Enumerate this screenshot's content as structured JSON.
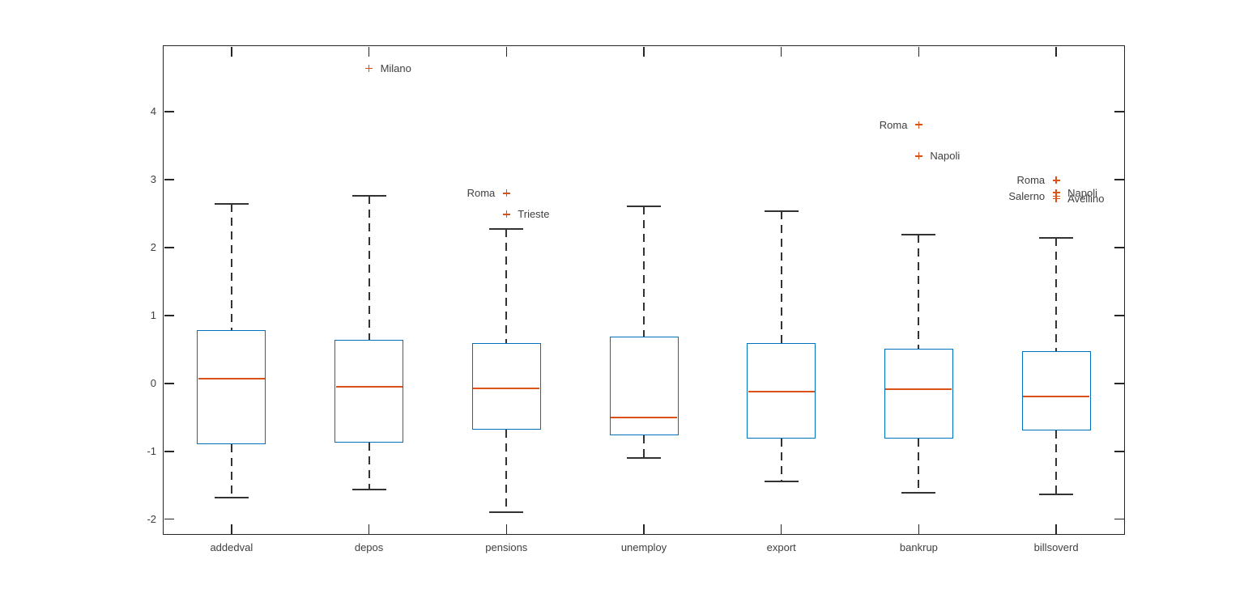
{
  "figure": {
    "background": "#ffffff",
    "axis_color": "#262626",
    "text_color": "#404040"
  },
  "chart_data": {
    "type": "boxplot",
    "title": "",
    "xlabel": "",
    "ylabel": "",
    "categories": [
      "addedval",
      "depos",
      "pensions",
      "unemploy",
      "export",
      "bankrup",
      "billsoverd"
    ],
    "ylim": [
      -2.23,
      4.98
    ],
    "yticks": [
      -2,
      -1,
      0,
      1,
      2,
      3,
      4
    ],
    "grid": false,
    "tick_direction": "in",
    "box_on": true,
    "colors": {
      "box_edge": "#0072BD",
      "median": "#D95319",
      "outlier": "#D95319",
      "whisker": "#333333"
    },
    "series": [
      {
        "name": "addedval",
        "whisker_low": -1.68,
        "q1": -0.9,
        "median": 0.07,
        "q3": 0.79,
        "whisker_high": 2.64,
        "outliers": []
      },
      {
        "name": "depos",
        "whisker_low": -1.56,
        "q1": -0.87,
        "median": -0.05,
        "q3": 0.64,
        "whisker_high": 2.76,
        "outliers": [
          {
            "label": "Milano",
            "value": 4.64,
            "side": "right"
          }
        ]
      },
      {
        "name": "pensions",
        "whisker_low": -1.9,
        "q1": -0.68,
        "median": -0.07,
        "q3": 0.6,
        "whisker_high": 2.27,
        "outliers": [
          {
            "label": "Roma",
            "value": 2.8,
            "side": "left"
          },
          {
            "label": "Trieste",
            "value": 2.49,
            "side": "right"
          }
        ]
      },
      {
        "name": "unemploy",
        "whisker_low": -1.1,
        "q1": -0.76,
        "median": -0.5,
        "q3": 0.69,
        "whisker_high": 2.61,
        "outliers": []
      },
      {
        "name": "export",
        "whisker_low": -1.44,
        "q1": -0.81,
        "median": -0.12,
        "q3": 0.6,
        "whisker_high": 2.54,
        "outliers": []
      },
      {
        "name": "bankrup",
        "whisker_low": -1.61,
        "q1": -0.81,
        "median": -0.08,
        "q3": 0.51,
        "whisker_high": 2.19,
        "outliers": [
          {
            "label": "Roma",
            "value": 3.81,
            "side": "left"
          },
          {
            "label": "Napoli",
            "value": 3.35,
            "side": "right"
          }
        ]
      },
      {
        "name": "billsoverd",
        "whisker_low": -1.64,
        "q1": -0.69,
        "median": -0.19,
        "q3": 0.48,
        "whisker_high": 2.14,
        "outliers": [
          {
            "label": "Roma",
            "value": 2.99,
            "side": "left"
          },
          {
            "label": "Napoli",
            "value": 2.81,
            "side": "right"
          },
          {
            "label": "Salerno",
            "value": 2.76,
            "side": "left"
          },
          {
            "label": "Avellino",
            "value": 2.72,
            "side": "right"
          }
        ]
      }
    ]
  }
}
